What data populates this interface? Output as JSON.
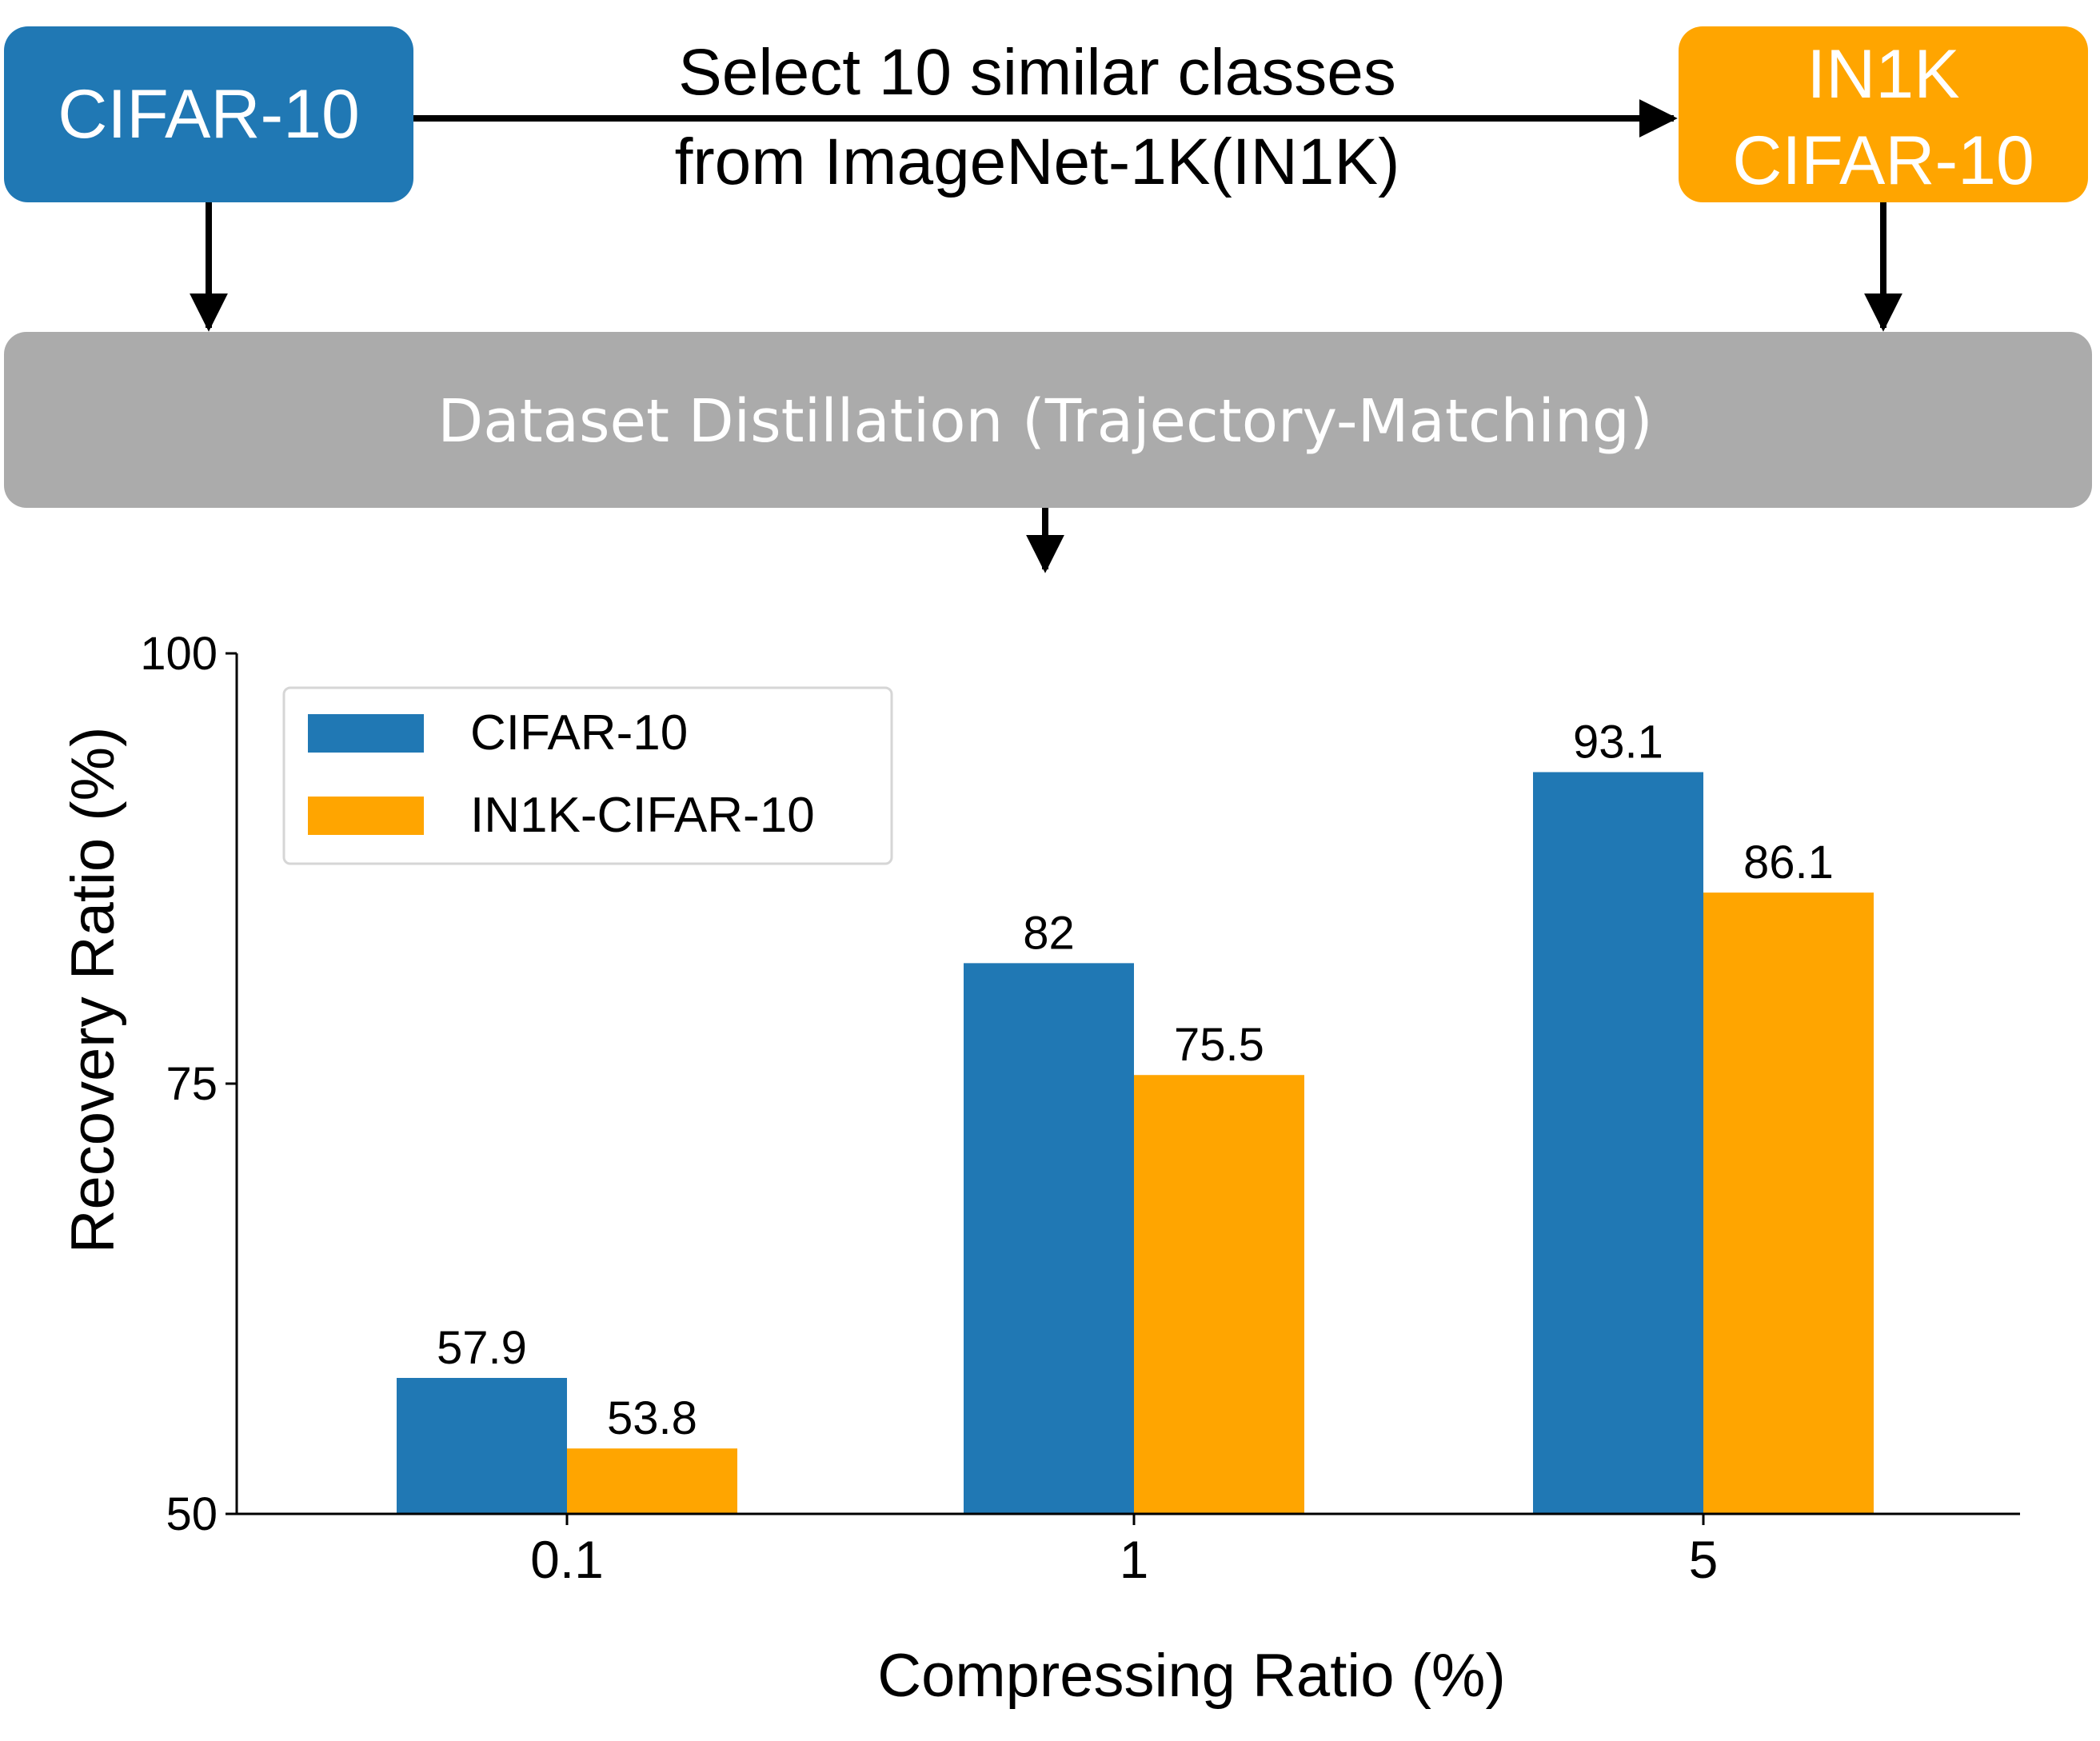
{
  "diagram": {
    "source_box": "CIFAR-10",
    "arrow_label_line1": "Select 10 similar classes",
    "arrow_label_line2": "from ImageNet-1K(IN1K)",
    "target_box_line1": "IN1K",
    "target_box_line2": "CIFAR-10",
    "distill_box": "Dataset Distillation (Trajectory-Matching)"
  },
  "colors": {
    "blue": "#2078b4",
    "orange": "#ffa500",
    "gray": "#ababab",
    "white": "#ffffff",
    "black": "#000000"
  },
  "chart_data": {
    "type": "bar",
    "title": "",
    "xlabel": "Compressing Ratio (%)",
    "ylabel": "Recovery Ratio (%)",
    "categories": [
      "0.1",
      "1",
      "5"
    ],
    "ylim": [
      50,
      100
    ],
    "yticks": [
      50,
      75,
      100
    ],
    "legend_position": "top-left",
    "grid": false,
    "series": [
      {
        "name": "CIFAR-10",
        "color": "#2078b4",
        "values": [
          57.9,
          82,
          93.1
        ],
        "labels": [
          "57.9",
          "82",
          "93.1"
        ]
      },
      {
        "name": "IN1K-CIFAR-10",
        "color": "#ffa500",
        "values": [
          53.8,
          75.5,
          86.1
        ],
        "labels": [
          "53.8",
          "75.5",
          "86.1"
        ]
      }
    ]
  }
}
